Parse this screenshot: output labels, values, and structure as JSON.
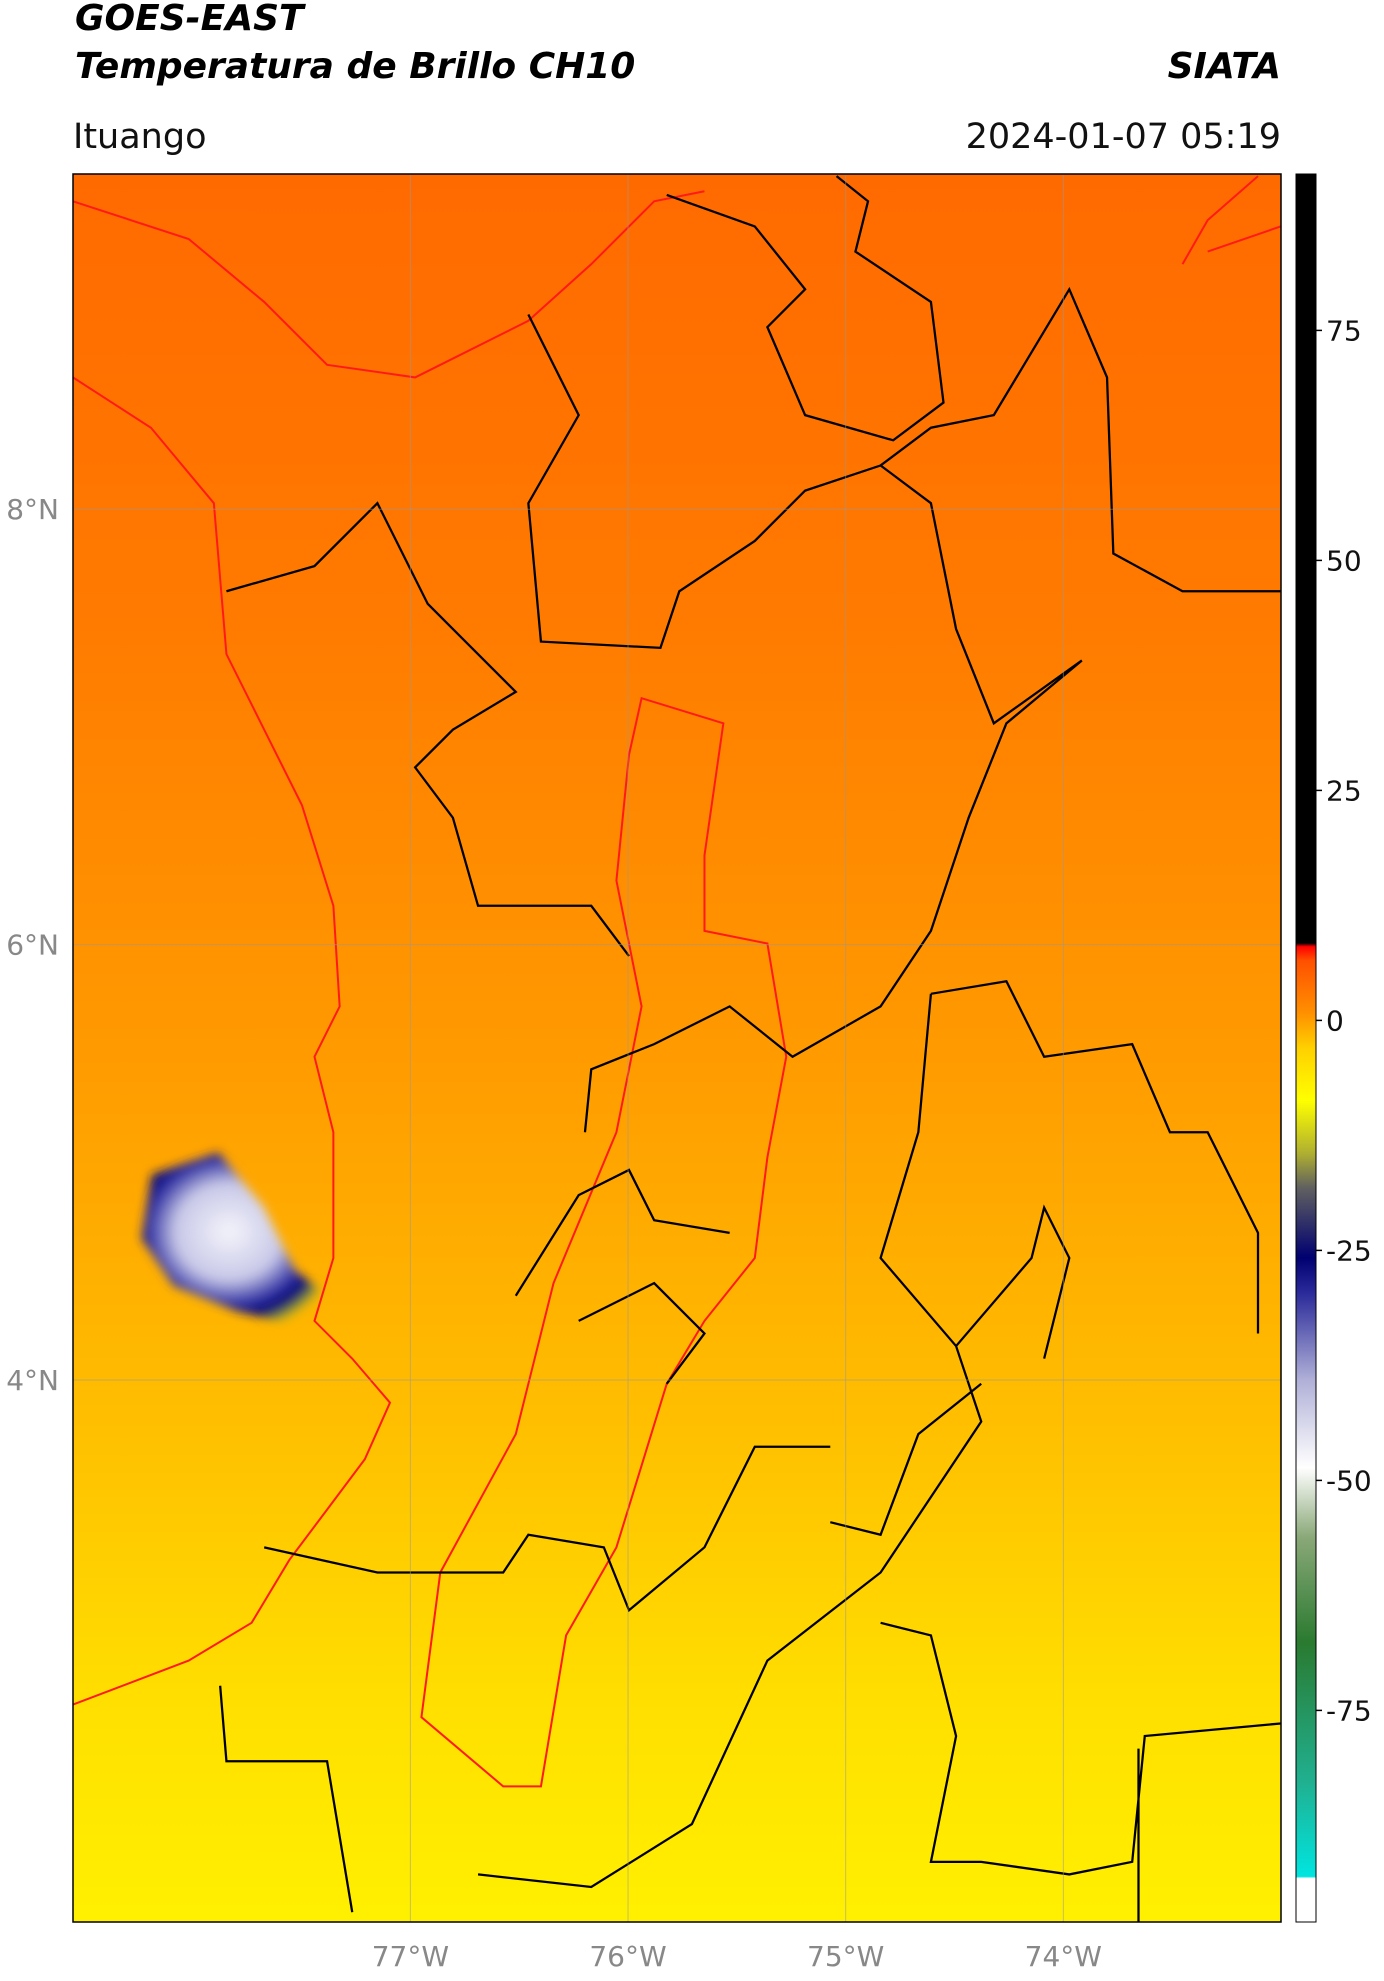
{
  "header": {
    "title": "GOES-EAST",
    "subtitle": "Temperatura de Brillo CH10",
    "source": "SIATA",
    "location": "Ituango",
    "datetime": "2024-01-07 05:19"
  },
  "map": {
    "xlim": [
      -78.55,
      -73.0
    ],
    "ylim": [
      1.51,
      9.54
    ],
    "xticks": [
      {
        "value": -77,
        "label": "77°W"
      },
      {
        "value": -76,
        "label": "76°W"
      },
      {
        "value": -75,
        "label": "75°W"
      },
      {
        "value": -74,
        "label": "74°W"
      }
    ],
    "yticks": [
      {
        "value": 8,
        "label": "8°N"
      },
      {
        "value": 6,
        "label": "6°N"
      },
      {
        "value": 4,
        "label": "4°N"
      }
    ],
    "grid": true
  },
  "colorbar": {
    "lim": [
      -98,
      92
    ],
    "ticks": [
      75,
      50,
      25,
      0,
      -25,
      -50,
      -75
    ]
  }
}
